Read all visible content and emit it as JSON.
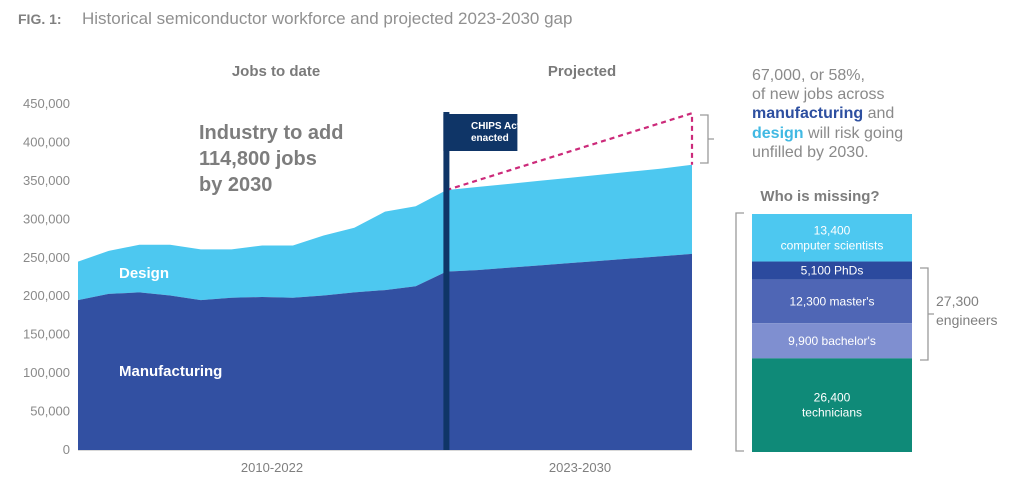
{
  "figure": {
    "label": "FIG. 1:",
    "title": "Historical semiconductor workforce and projected 2023-2030 gap"
  },
  "sections": {
    "left": "Jobs to date",
    "right": "Projected"
  },
  "callout": [
    "Industry to add",
    "114,800 jobs",
    "by 2030"
  ],
  "chips_marker": {
    "line1": "CHIPS Act",
    "line2": "enacted",
    "color": "#0f3567"
  },
  "gap_note": {
    "line1": "67,000, or 58%,",
    "line2": "of new jobs across",
    "line3_bold": "manufacturing",
    "line3_rest": " and",
    "line4_bold": "design",
    "line4_rest": " will risk going",
    "line5": "unfilled by 2030."
  },
  "missing": {
    "title": "Who is missing?",
    "engineers_label": [
      "27,300",
      "engineers"
    ],
    "segments": [
      {
        "lines": [
          "13,400",
          "computer scientists"
        ],
        "value": 13400,
        "color": "#4dc8f0"
      },
      {
        "lines": [
          "5,100 PhDs"
        ],
        "value": 5100,
        "color": "#2c4a9e"
      },
      {
        "lines": [
          "12,300 master's"
        ],
        "value": 12300,
        "color": "#4f66b5"
      },
      {
        "lines": [
          "9,900 bachelor's"
        ],
        "value": 9900,
        "color": "#7f8fd0"
      },
      {
        "lines": [
          "26,400",
          "technicians"
        ],
        "value": 26400,
        "color": "#0f8a78"
      }
    ]
  },
  "colors": {
    "manufacturing": "#3250a2",
    "design": "#4dc8f0",
    "gap_line": "#cc2a7a",
    "bracket": "#9a9a9a",
    "axis": "#b0b0b0"
  },
  "chart_data": {
    "type": "area",
    "title": "Historical semiconductor workforce and projected 2023-2030 gap",
    "x_categories": [
      "2010-2022",
      "2023-2030"
    ],
    "ylim": [
      0,
      450000
    ],
    "yticks": [
      "0",
      "50,000",
      "100,000",
      "150,000",
      "200,000",
      "250,000",
      "300,000",
      "350,000",
      "400,000",
      "450,000"
    ],
    "x": [
      2010,
      2011,
      2012,
      2013,
      2014,
      2015,
      2016,
      2017,
      2018,
      2019,
      2020,
      2021,
      2022,
      2023,
      2024,
      2025,
      2026,
      2027,
      2028,
      2029,
      2030
    ],
    "series": [
      {
        "name": "Manufacturing",
        "values": [
          195000,
          203000,
          205000,
          201000,
          195000,
          198000,
          199000,
          198000,
          201000,
          205000,
          208000,
          213000,
          232000,
          234000,
          237000,
          240000,
          243000,
          246000,
          249000,
          252000,
          255000
        ]
      },
      {
        "name": "Design",
        "values": [
          50000,
          56000,
          62000,
          66000,
          66000,
          63000,
          67000,
          68000,
          78000,
          84000,
          102000,
          104000,
          106000,
          108000,
          109000,
          110000,
          111000,
          112000,
          113000,
          114000,
          116000
        ]
      }
    ],
    "demand_2030": 438000,
    "chips_act_year": 2022
  }
}
